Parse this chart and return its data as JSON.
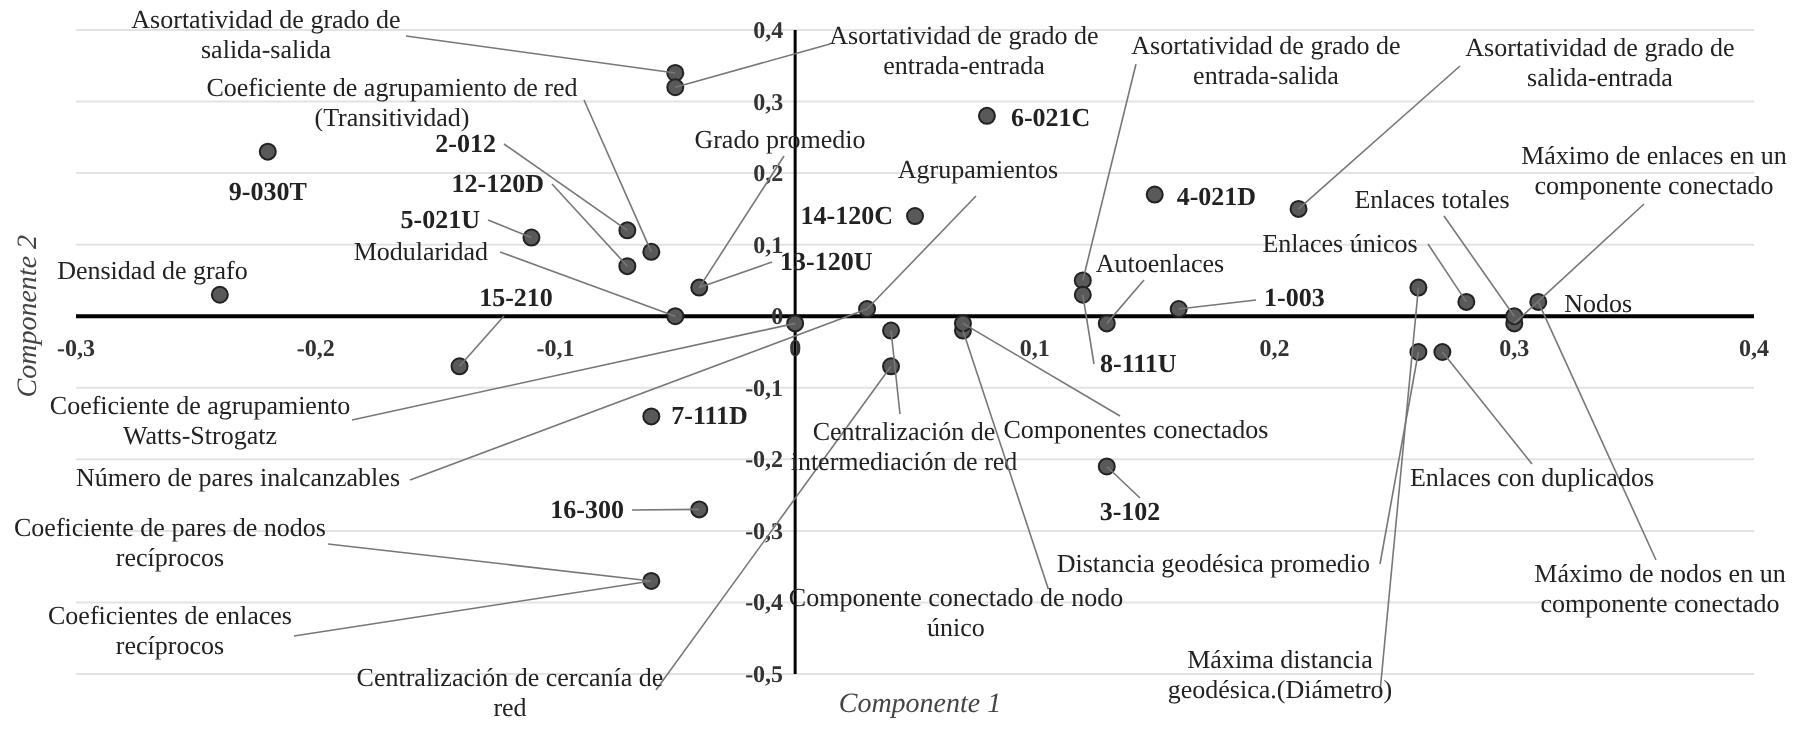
{
  "chart_data": {
    "type": "scatter",
    "xlabel": "Componente 1",
    "ylabel": "Componente 2",
    "xlim": [
      -0.3,
      0.4
    ],
    "ylim": [
      -0.5,
      0.4
    ],
    "xticks": [
      {
        "value": -0.3,
        "label": "-0,3"
      },
      {
        "value": -0.2,
        "label": "-0,2"
      },
      {
        "value": -0.1,
        "label": "-0,1"
      },
      0,
      {
        "value": 0.1,
        "label": "0,1"
      },
      {
        "value": 0.2,
        "label": "0,2"
      },
      {
        "value": 0.3,
        "label": "0,3"
      },
      {
        "value": 0.4,
        "label": "0,4"
      }
    ],
    "yticks": [
      {
        "value": 0.4,
        "label": "0,4"
      },
      {
        "value": 0.3,
        "label": "0,3"
      },
      {
        "value": 0.2,
        "label": "0,2"
      },
      {
        "value": 0.1,
        "label": "0,1"
      },
      0,
      {
        "value": -0.1,
        "label": "-0,1"
      },
      {
        "value": -0.2,
        "label": "-0,2"
      },
      {
        "value": -0.3,
        "label": "-0,3"
      },
      {
        "value": -0.4,
        "label": "-0,4"
      },
      {
        "value": -0.5,
        "label": "-0,5"
      }
    ],
    "grid": "y",
    "marker": "circle",
    "series": [
      {
        "color": "#595959",
        "x": [
          -0.05,
          -0.05,
          -0.06,
          -0.07,
          -0.07,
          -0.22,
          -0.11,
          -0.05,
          -0.04,
          0.05,
          0.08,
          0.03,
          -0.24,
          -0.14,
          0,
          -0.06,
          -0.04,
          -0.06,
          0.04,
          0.04,
          0.07,
          0.07,
          0.13,
          0.12,
          0.12,
          0.13,
          0.15,
          0.21,
          0.16,
          0.3,
          0.3,
          0.28,
          0.31,
          0.27,
          0.26,
          0.26
        ],
        "values": [
          0.34,
          0.32,
          0.09,
          0.12,
          0.07,
          0.23,
          0.11,
          0,
          0.04,
          0.14,
          0.28,
          0.01,
          0.03,
          -0.07,
          -0.01,
          -0.14,
          -0.27,
          -0.37,
          -0.07,
          -0.02,
          -0.02,
          -0.01,
          -0.21,
          0.05,
          0.03,
          -0.01,
          0.17,
          0.15,
          0.01,
          -0.01,
          0,
          0.02,
          0.02,
          -0.05,
          -0.05,
          0.04
        ]
      }
    ],
    "annotations": [
      {
        "text": "Asortatividad de grado de\nsalida-salida",
        "x": -0.05,
        "y": 0.34
      },
      {
        "text": "Asortatividad de grado de\nentrada-entrada",
        "x": -0.05,
        "y": 0.32
      },
      {
        "text": "Coeficiente de agrupamiento  de red\n(Transitividad)",
        "x": -0.06,
        "y": 0.09
      },
      {
        "text": "2-012",
        "x": -0.07,
        "y": 0.12
      },
      {
        "text": "12-120D",
        "x": -0.07,
        "y": 0.07
      },
      {
        "text": "9-030T",
        "x": -0.22,
        "y": 0.23
      },
      {
        "text": "5-021U",
        "x": -0.11,
        "y": 0.11
      },
      {
        "text": "Modularidad",
        "x": -0.05,
        "y": 0
      },
      {
        "text": "Grado promedio",
        "x": -0.04,
        "y": 0.04
      },
      {
        "text": "13-120U",
        "x": -0.04,
        "y": 0.04
      },
      {
        "text": "14-120C",
        "x": 0.05,
        "y": 0.14
      },
      {
        "text": "6-021C",
        "x": 0.08,
        "y": 0.28
      },
      {
        "text": "Agrupamientos",
        "x": 0.03,
        "y": 0.01
      },
      {
        "text": "Densidad de grafo",
        "x": -0.24,
        "y": 0.03
      },
      {
        "text": "15-210",
        "x": -0.14,
        "y": -0.07
      },
      {
        "text": "Coeficiente  de agrupamiento\nWatts-Strogatz",
        "x": 0,
        "y": -0.01
      },
      {
        "text": "Número de pares inalcanzables",
        "x": 0.03,
        "y": 0.01
      },
      {
        "text": "7-111D",
        "x": -0.06,
        "y": -0.14
      },
      {
        "text": "16-300",
        "x": -0.04,
        "y": -0.27
      },
      {
        "text": "Coeficiente de pares de nodos\nrecíprocos",
        "x": -0.06,
        "y": -0.37
      },
      {
        "text": "Coeficientes de enlaces\nrecíprocos",
        "x": -0.06,
        "y": -0.37
      },
      {
        "text": "Centralización  de cercanía de\nred",
        "x": 0.04,
        "y": -0.07
      },
      {
        "text": "Centralización  de\nintermediación  de red",
        "x": 0.04,
        "y": -0.02
      },
      {
        "text": "Componente conectado de nodo\núnico",
        "x": 0.07,
        "y": -0.02
      },
      {
        "text": "Componentes conectados",
        "x": 0.07,
        "y": -0.01
      },
      {
        "text": "3-102",
        "x": 0.13,
        "y": -0.21
      },
      {
        "text": "Asortatividad  de grado de\nentrada-salida",
        "x": 0.12,
        "y": 0.05
      },
      {
        "text": "8-111U",
        "x": 0.12,
        "y": 0.03
      },
      {
        "text": "Autoenlaces",
        "x": 0.13,
        "y": -0.01
      },
      {
        "text": "4-021D",
        "x": 0.15,
        "y": 0.17
      },
      {
        "text": "Asortatividad  de grado de\nsalida-entrada",
        "x": 0.21,
        "y": 0.15
      },
      {
        "text": "1-003",
        "x": 0.16,
        "y": 0.01
      },
      {
        "text": "Máximo  de enlaces en un\ncomponente conectado",
        "x": 0.3,
        "y": -0.01
      },
      {
        "text": "Enlaces totales",
        "x": 0.3,
        "y": 0
      },
      {
        "text": "Enlaces únicos",
        "x": 0.28,
        "y": 0.02
      },
      {
        "text": "Nodos",
        "x": 0.31,
        "y": 0.02
      },
      {
        "text": "Máximo  de nodos en un\ncomponente conectado",
        "x": 0.31,
        "y": 0.02
      },
      {
        "text": "Enlaces  con duplicados",
        "x": 0.27,
        "y": -0.05
      },
      {
        "text": "Distancia  geodésica promedio",
        "x": 0.26,
        "y": -0.05
      },
      {
        "text": "Máxima  distancia\ngeodésica.(Diámetro)",
        "x": 0.26,
        "y": 0.04
      }
    ]
  }
}
